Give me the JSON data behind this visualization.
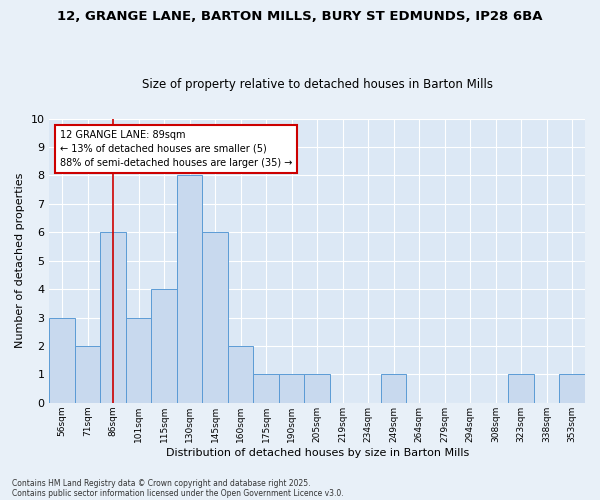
{
  "title": "12, GRANGE LANE, BARTON MILLS, BURY ST EDMUNDS, IP28 6BA",
  "subtitle": "Size of property relative to detached houses in Barton Mills",
  "xlabel": "Distribution of detached houses by size in Barton Mills",
  "ylabel": "Number of detached properties",
  "categories": [
    "56sqm",
    "71sqm",
    "86sqm",
    "101sqm",
    "115sqm",
    "130sqm",
    "145sqm",
    "160sqm",
    "175sqm",
    "190sqm",
    "205sqm",
    "219sqm",
    "234sqm",
    "249sqm",
    "264sqm",
    "279sqm",
    "294sqm",
    "308sqm",
    "323sqm",
    "338sqm",
    "353sqm"
  ],
  "values": [
    3,
    2,
    6,
    3,
    4,
    8,
    6,
    2,
    1,
    1,
    1,
    0,
    0,
    1,
    0,
    0,
    0,
    0,
    1,
    0,
    1
  ],
  "bar_color": "#c8d9ee",
  "bar_edge_color": "#5b9bd5",
  "vline_x": 2,
  "vline_color": "#cc0000",
  "ylim": [
    0,
    10
  ],
  "yticks": [
    0,
    1,
    2,
    3,
    4,
    5,
    6,
    7,
    8,
    9,
    10
  ],
  "annotation_title": "12 GRANGE LANE: 89sqm",
  "annotation_line1": "← 13% of detached houses are smaller (5)",
  "annotation_line2": "88% of semi-detached houses are larger (35) →",
  "annotation_box_color": "#ffffff",
  "annotation_box_edge": "#cc0000",
  "footnote1": "Contains HM Land Registry data © Crown copyright and database right 2025.",
  "footnote2": "Contains public sector information licensed under the Open Government Licence v3.0.",
  "background_color": "#e8f0f8",
  "plot_bg_color": "#dce8f5"
}
